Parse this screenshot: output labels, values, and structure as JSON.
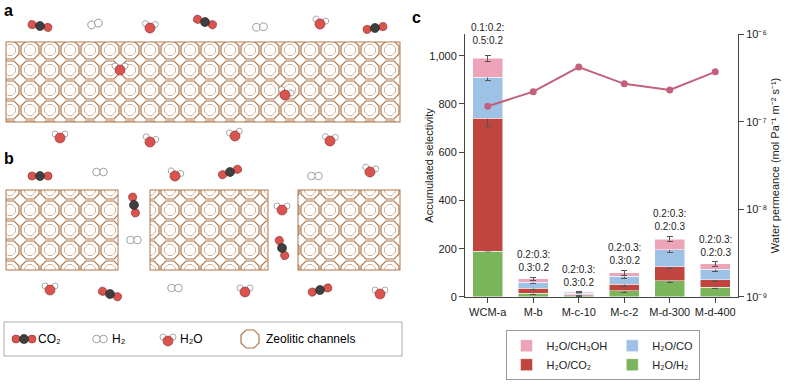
{
  "diagram": {
    "panel_labels": [
      "a",
      "b"
    ],
    "legend": [
      {
        "label": "CO₂"
      },
      {
        "label": "H₂"
      },
      {
        "label": "H₂O"
      },
      {
        "label": "Zeolitic channels"
      }
    ]
  },
  "chart_data": {
    "type": "bar",
    "stacked": true,
    "panel_label": "c",
    "categories": [
      "WCM-a",
      "M-b",
      "M-c-10",
      "M-c-2",
      "M-d-300",
      "M-d-400"
    ],
    "y_label": "Accumulated selectivity",
    "y2_label": "Water permeance (mol Pa⁻¹ m⁻² s⁻¹)",
    "ylim": [
      0,
      1090
    ],
    "yticks": [
      0,
      200,
      400,
      600,
      800,
      {
        "value": 1000,
        "label": "1,000"
      }
    ],
    "log": "y2",
    "y2lim": [
      1e-09,
      1e-06
    ],
    "y2ticks": [
      {
        "value": 1e-09,
        "label": "10⁻⁹"
      },
      {
        "value": 1e-08,
        "label": "10⁻⁸"
      },
      {
        "value": 1e-07,
        "label": "10⁻⁷"
      },
      {
        "value": 1e-06,
        "label": "10⁻⁶"
      }
    ],
    "grid": false,
    "legend": "bottom",
    "annotations": [
      "0.1:0.2:0.5:0.2",
      "0.2:0.3:0.3:0.2",
      "0.2:0.3:0.3:0.2",
      "0.2:0.3:0.3:0.2",
      "0.2:0.3:0.2:0.3",
      "0.2:0.3:0.2:0.3"
    ],
    "series": [
      {
        "name": "H₂O/H₂",
        "color": "#7ab55c",
        "values": [
          190,
          15,
          4,
          25,
          68,
          40
        ],
        "errors": [
          0,
          5,
          2,
          7,
          10,
          6
        ]
      },
      {
        "name": "H₂O/CO₂",
        "color": "#c0453f",
        "values": [
          550,
          22,
          6,
          27,
          57,
          32
        ],
        "errors": [
          35,
          5,
          2,
          7,
          8,
          6
        ]
      },
      {
        "name": "H₂O/CO",
        "color": "#9ec1e6",
        "values": [
          170,
          23,
          6,
          33,
          70,
          43
        ],
        "errors": [
          12,
          6,
          2,
          8,
          10,
          8
        ]
      },
      {
        "name": "H₂O/CH₃OH",
        "color": "#eda3b8",
        "values": [
          80,
          15,
          4,
          15,
          45,
          22
        ],
        "errors": [
          12,
          7,
          2,
          10,
          12,
          10
        ]
      },
      {
        "type": "line",
        "axis": "y2",
        "color": "#c4607c",
        "marker": "circle",
        "values": [
          1.5e-07,
          2.2e-07,
          4.2e-07,
          2.7e-07,
          2.3e-07,
          3.7e-07
        ]
      }
    ]
  }
}
